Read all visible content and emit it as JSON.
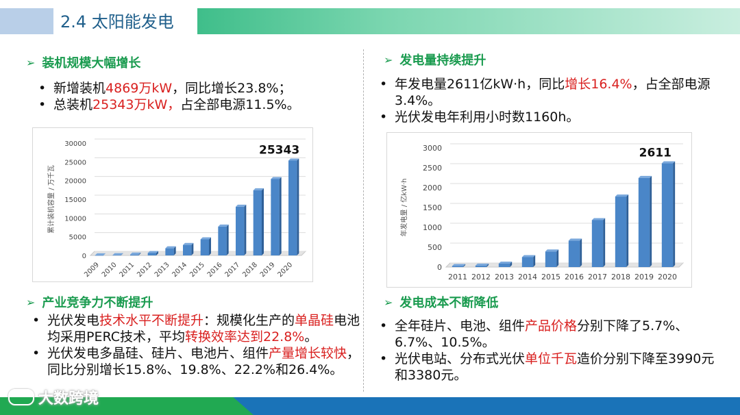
{
  "header": {
    "title": "2.4 太阳能发电"
  },
  "sections": {
    "install": {
      "title": "装机规模大幅增长",
      "bullets": [
        {
          "pre": "新增装机",
          "red": "4869万kW",
          "post": "，同比增长23.8%；"
        },
        {
          "pre": "总装机",
          "red": "25343万kW，",
          "post": "占全部电源11.5%。"
        }
      ]
    },
    "generation": {
      "title": "发电量持续提升",
      "bullets": [
        {
          "pre": "年发电量2611亿kW·h，同比",
          "red": "增长16.4%",
          "post": "，占全部电源3.4%。"
        },
        {
          "text": "光伏发电年利用小时数1160h。"
        }
      ]
    },
    "competitiveness": {
      "title": "产业竞争力不断提升",
      "bullets": [
        {
          "pre": "光伏发电",
          "red1": "技术水平不断提升",
          "mid": "：规模化生产的",
          "red2": "单晶硅",
          "mid2": "电池均采用PERC技术，平均",
          "red3": "转换效率达到22.8%",
          "post": "。"
        },
        {
          "pre": "光伏发电多晶硅、硅片、电池片、组件",
          "red": "产量增长较快",
          "post": "，同比分别增长15.8%、19.8%、22.2%和26.4%。"
        }
      ]
    },
    "cost": {
      "title": "发电成本不断降低",
      "bullets": [
        {
          "pre": "全年硅片、电池、组件",
          "red": "产品价格",
          "post": "分别下降了5.7%、6.7%、10.5%。"
        },
        {
          "pre": "光伏电站、分布式光伏",
          "red": "单位千瓦",
          "post": "造价分别下降至3990元和3380元。"
        }
      ]
    }
  },
  "footer": {
    "watermark": "大数跨境"
  },
  "colors": {
    "bar": "#4a86c8",
    "green": "#1a9b4f",
    "red": "#d9201f"
  },
  "chart_data": [
    {
      "type": "bar",
      "ylabel": "累计装机容量 / 万千瓦",
      "categories": [
        "2009",
        "2010",
        "2011",
        "2012",
        "2013",
        "2014",
        "2015",
        "2016",
        "2017",
        "2018",
        "2019",
        "2020"
      ],
      "values": [
        30,
        80,
        220,
        650,
        1900,
        2800,
        4300,
        7700,
        13000,
        17400,
        20400,
        25343
      ],
      "ylim": [
        0,
        30000
      ],
      "yticks": [
        "0",
        "5000",
        "10000",
        "15000",
        "20000",
        "25000",
        "30000"
      ],
      "annotation": "25343"
    },
    {
      "type": "bar",
      "ylabel": "年发电量 / 亿kW·h",
      "categories": [
        "2011",
        "2012",
        "2013",
        "2014",
        "2015",
        "2016",
        "2017",
        "2018",
        "2019",
        "2020"
      ],
      "values": [
        26,
        36,
        87,
        250,
        392,
        665,
        1182,
        1775,
        2243,
        2611
      ],
      "ylim": [
        0,
        3000
      ],
      "yticks": [
        "0",
        "500",
        "1000",
        "1500",
        "2000",
        "2500",
        "3000"
      ],
      "annotation": "2611"
    }
  ]
}
